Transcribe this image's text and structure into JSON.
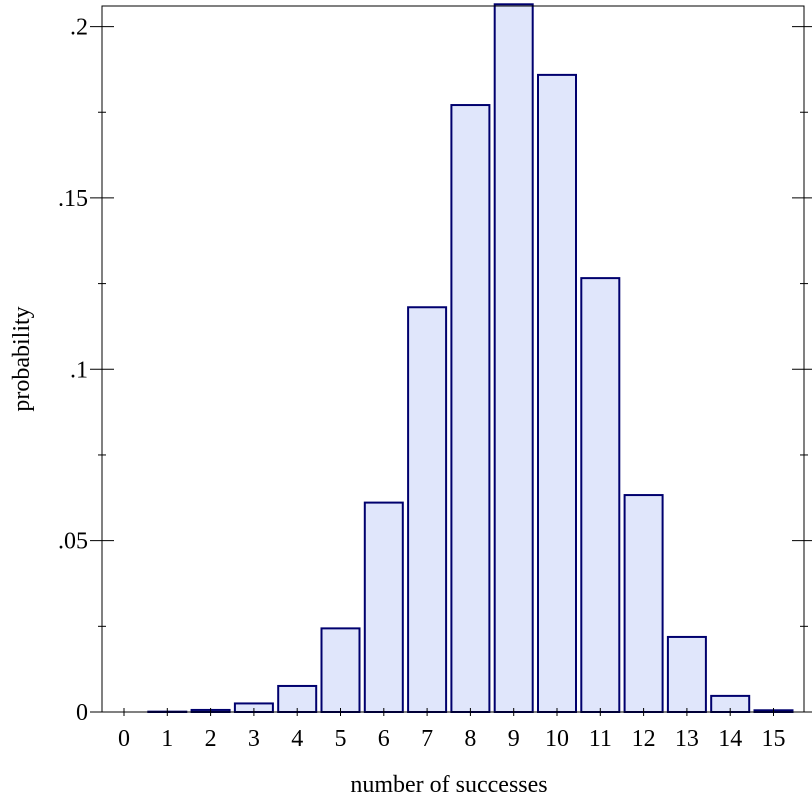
{
  "colors": {
    "bar_fill": "#e0e6fb",
    "bar_stroke": "#00006e",
    "frame": "#000000"
  },
  "chart_data": {
    "type": "bar",
    "title": "",
    "xlabel": "number of successes",
    "ylabel": "probability",
    "categories": [
      "0",
      "1",
      "2",
      "3",
      "4",
      "5",
      "6",
      "7",
      "8",
      "9",
      "10",
      "11",
      "12",
      "13",
      "14",
      "15"
    ],
    "values": [
      0.0,
      0.0001,
      0.0006,
      0.0025,
      0.0076,
      0.0244,
      0.0611,
      0.1181,
      0.1771,
      0.2065,
      0.1859,
      0.1266,
      0.0633,
      0.0219,
      0.0047,
      0.0005
    ],
    "ylim": [
      0,
      0.206
    ],
    "y_ticks": [
      0,
      0.05,
      0.1,
      0.15,
      0.2
    ],
    "y_tick_labels": [
      "0",
      ".05",
      ".1",
      ".15",
      ".2"
    ],
    "grid": false,
    "legend": "none"
  }
}
